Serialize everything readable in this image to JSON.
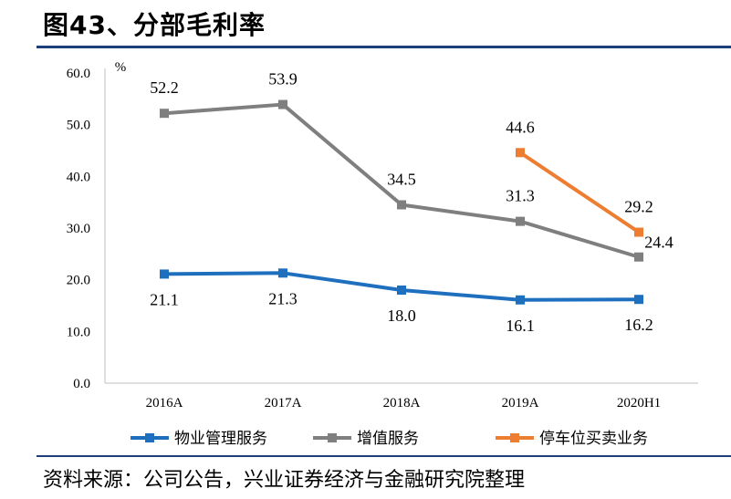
{
  "figure": {
    "title": "图43、分部毛利率",
    "source": "资料来源：公司公告，兴业证券经济与金融研究院整理"
  },
  "chart_data": {
    "type": "line",
    "unit_label": "%",
    "categories": [
      "2016A",
      "2017A",
      "2018A",
      "2019A",
      "2020H1"
    ],
    "ylim": [
      0,
      60
    ],
    "yticks": [
      "0.0",
      "10.0",
      "20.0",
      "30.0",
      "40.0",
      "50.0",
      "60.0"
    ],
    "grid": false,
    "legend_position": "bottom",
    "series": [
      {
        "name": "物业管理服务",
        "color": "#1f6fbf",
        "values": [
          21.1,
          21.3,
          18.0,
          16.1,
          16.2
        ],
        "labels": [
          "21.1",
          "21.3",
          "18.0",
          "16.1",
          "16.2"
        ],
        "label_pos": "below"
      },
      {
        "name": "增值服务",
        "color": "#7f7f7f",
        "values": [
          52.2,
          53.9,
          34.5,
          31.3,
          24.4
        ],
        "labels": [
          "52.2",
          "53.9",
          "34.5",
          "31.3",
          "24.4"
        ],
        "label_pos": "above"
      },
      {
        "name": "停车位买卖业务",
        "color": "#ed7d31",
        "values": [
          null,
          null,
          null,
          44.6,
          29.2
        ],
        "labels": [
          null,
          null,
          null,
          "44.6",
          "29.2"
        ],
        "label_pos": "above"
      }
    ]
  }
}
